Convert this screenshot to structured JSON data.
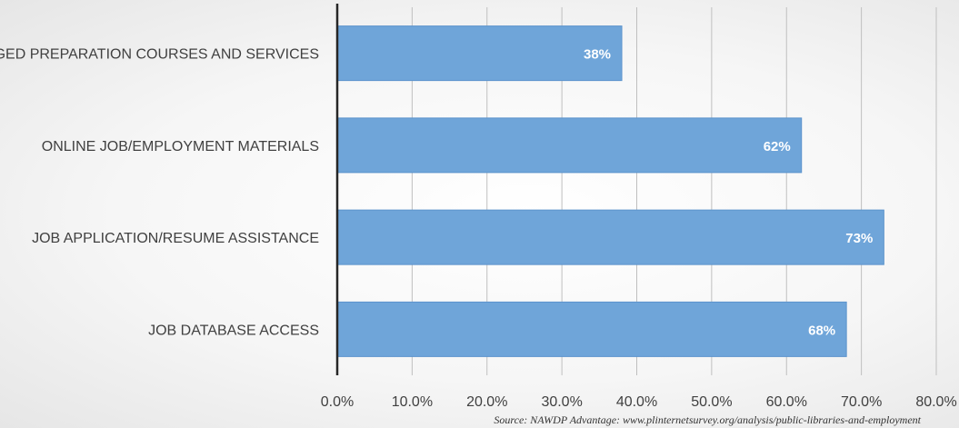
{
  "chart_data": {
    "type": "bar",
    "orientation": "horizontal",
    "categories": [
      "GED PREPARATION COURSES AND SERVICES",
      "ONLINE JOB/EMPLOYMENT MATERIALS",
      "JOB APPLICATION/RESUME ASSISTANCE",
      "JOB DATABASE ACCESS"
    ],
    "values": [
      38,
      62,
      73,
      68
    ],
    "data_labels": [
      "38%",
      "62%",
      "73%",
      "68%"
    ],
    "xlim": [
      0,
      80
    ],
    "x_ticks": [
      0,
      10,
      20,
      30,
      40,
      50,
      60,
      70,
      80
    ],
    "x_tick_labels": [
      "0.0%",
      "10.0%",
      "20.0%",
      "30.0%",
      "40.0%",
      "50.0%",
      "60.0%",
      "70.0%",
      "80.0%"
    ],
    "title": "",
    "xlabel": "",
    "ylabel": "",
    "grid": true,
    "legend": "none",
    "bar_color": "#6fa5d9",
    "bar_edge_color": "#5b93cc",
    "grid_color": "#bfbfbf",
    "axis_color": "#262626"
  },
  "source": "Source: NAWDP Advantage: www.plinternetsurvey.org/analysis/public-libraries-and-employment"
}
